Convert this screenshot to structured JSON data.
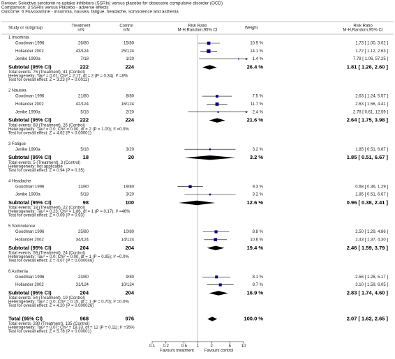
{
  "header": {
    "review": "Review:  Selective serotonin re-uptake inhibitors (SSRIs) versus placebo for obsessive compulsive disorder (OCD)",
    "comparison": "Comparison:  3 SSRIs versus Placebo - adverse effects",
    "outcome": "Outcome:  6 Fluvoxamine - insomnia, nausea, fatigue, headache, somnolence and asthenia"
  },
  "chart_data": {
    "type": "forest",
    "columns": {
      "study": "Study or subgroup",
      "treatment": [
        "Treatment",
        "n/N"
      ],
      "control": [
        "Control",
        "n/N"
      ],
      "plot": [
        "Risk Ratio",
        "M-H,Random,95% CI"
      ],
      "weight": "Weight",
      "ratio": [
        "Risk Ratio",
        "M-H,Random,95% CI"
      ]
    },
    "groups": [
      {
        "title": "1 Insomnia",
        "studies": [
          {
            "name": "Goodman 1996",
            "treatment": "26/80",
            "control": "15/80",
            "weight": 10.9,
            "weight_label": "10.9 %",
            "rr": 1.73,
            "ci": [
              1.0,
              3.02
            ],
            "rr_label": "1.73 [ 1.00, 3.02 ]"
          },
          {
            "name": "Hollander 2002",
            "treatment": "43/124",
            "control": "25/124",
            "weight": 14.1,
            "weight_label": "14.1 %",
            "rr": 1.72,
            "ci": [
              1.12,
              2.63
            ],
            "rr_label": "1.72 [ 1.12, 2.63 ]"
          },
          {
            "name": "Jenike 1990a",
            "treatment": "7/18",
            "control": "1/20",
            "weight": 1.4,
            "weight_label": "1.4 %",
            "rr": 7.78,
            "ci": [
              1.06,
              57.25
            ],
            "rr_label": "7.78 [ 1.06, 57.25 ]"
          }
        ],
        "subtotal": {
          "name": "Subtotal (95% CI)",
          "treatment": 222,
          "control": 224,
          "weight": 26.4,
          "weight_label": "26.4 %",
          "rr": 1.81,
          "ci": [
            1.26,
            2.6
          ],
          "rr_label": "1.81 [ 1.26, 2.60 ]"
        },
        "notes": [
          "Total events: 76 (Treatment), 41 (Control)",
          "Heterogeneity: Tau² = 0.01; Chi² = 2.17, df = 2 (P = 0.34); I² =8%",
          "Test for overall effect: Z = 3.23 (P = 0.0012)"
        ]
      },
      {
        "title": "2 Nausea",
        "studies": [
          {
            "name": "Goodman 1996",
            "treatment": "21/80",
            "control": "8/80",
            "weight": 7.5,
            "weight_label": "7.5 %",
            "rr": 2.63,
            "ci": [
              1.24,
              5.57
            ],
            "rr_label": "2.63 [ 1.24, 5.57 ]"
          },
          {
            "name": "Hollander 2002",
            "treatment": "42/124",
            "control": "16/124",
            "weight": 11.7,
            "weight_label": "11.7 %",
            "rr": 2.63,
            "ci": [
              1.56,
              4.41
            ],
            "rr_label": "2.63 [ 1.56, 4.41 ]"
          },
          {
            "name": "Jenike 1990a",
            "treatment": "5/18",
            "control": "2/20",
            "weight": 2.4,
            "weight_label": "2.4 %",
            "rr": 2.78,
            "ci": [
              0.61,
              12.59
            ],
            "rr_label": "2.78 [ 0.61, 12.59 ]"
          }
        ],
        "subtotal": {
          "name": "Subtotal (95% CI)",
          "treatment": 222,
          "control": 224,
          "weight": 21.6,
          "weight_label": "21.6 %",
          "rr": 2.64,
          "ci": [
            1.75,
            3.98
          ],
          "rr_label": "2.64 [ 1.75, 3.98 ]"
        },
        "notes": [
          "Total events: 68 (Treatment), 26 (Control)",
          "Heterogeneity: Tau² = 0.0; Chi² = 0.00, df = 2 (P = 1.00); I² =0.0%",
          "Test for overall effect: Z = 4.62 (P < 0.00001)"
        ]
      },
      {
        "title": "3 Fatigue",
        "studies": [
          {
            "name": "Jenike 1990a",
            "treatment": "5/18",
            "control": "3/20",
            "weight": 3.2,
            "weight_label": "3.2 %",
            "rr": 1.85,
            "ci": [
              0.51,
              6.67
            ],
            "rr_label": "1.85 [ 0.51, 6.67 ]"
          }
        ],
        "subtotal": {
          "name": "Subtotal (95% CI)",
          "treatment": 18,
          "control": 20,
          "weight": 3.2,
          "weight_label": "3.2 %",
          "rr": 1.85,
          "ci": [
            0.51,
            6.67
          ],
          "rr_label": "1.85 [ 0.51, 6.67 ]"
        },
        "notes": [
          "Total events: 5 (Treatment), 3 (Control)",
          "Heterogeneity: not applicable",
          "Test for overall effect: Z = 0.94 (P = 0.35)"
        ]
      },
      {
        "title": "4 Headache",
        "studies": [
          {
            "name": "Goodman 1996",
            "treatment": "13/80",
            "control": "19/80",
            "weight": 9.3,
            "weight_label": "9.3 %",
            "rr": 0.68,
            "ci": [
              0.36,
              1.29
            ],
            "rr_label": "0.68 [ 0.36, 1.29 ]"
          },
          {
            "name": "Jenike 1990a",
            "treatment": "5/18",
            "control": "3/20",
            "weight": 3.2,
            "weight_label": "3.2 %",
            "rr": 1.85,
            "ci": [
              0.51,
              6.67
            ],
            "rr_label": "1.85 [ 0.51, 6.67 ]"
          }
        ],
        "subtotal": {
          "name": "Subtotal (95% CI)",
          "treatment": 98,
          "control": 100,
          "weight": 12.6,
          "weight_label": "12.6 %",
          "rr": 0.96,
          "ci": [
            0.38,
            2.41
          ],
          "rr_label": "0.96 [ 0.38, 2.41 ]"
        },
        "notes": [
          "Total events: 18 (Treatment), 22 (Control)",
          "Heterogeneity: Tau² = 0.23; Chi² = 1.86, df = 1 (P = 0.17); I² =46%",
          "Test for overall effect: Z = 0.09 (P = 0.93)"
        ]
      },
      {
        "title": "5 Somnolence",
        "studies": [
          {
            "name": "Goodman 1996",
            "treatment": "25/80",
            "control": "10/80",
            "weight": 8.8,
            "weight_label": "8.8 %",
            "rr": 2.5,
            "ci": [
              1.29,
              4.86
            ],
            "rr_label": "2.50 [ 1.29, 4.86 ]"
          },
          {
            "name": "Hollander 2002",
            "treatment": "34/124",
            "control": "14/124",
            "weight": 10.6,
            "weight_label": "10.6 %",
            "rr": 2.43,
            "ci": [
              1.37,
              4.3
            ],
            "rr_label": "2.43 [ 1.37, 4.30 ]"
          }
        ],
        "subtotal": {
          "name": "Subtotal (95% CI)",
          "treatment": 204,
          "control": 204,
          "weight": 19.4,
          "weight_label": "19.4 %",
          "rr": 2.46,
          "ci": [
            1.59,
            3.79
          ],
          "rr_label": "2.46 [ 1.59, 3.79 ]"
        },
        "notes": [
          "Total events: 59 (Treatment), 24 (Control)",
          "Heterogeneity: Tau² = 0.0; Chi² = 0.00, df = 1 (P = 0.95); I² =0.0%",
          "Test for overall effect: Z = 4.07 (P = 0.000046)"
        ]
      },
      {
        "title": "6 Asthenia",
        "studies": [
          {
            "name": "Goodman 1996",
            "treatment": "23/80",
            "control": "9/80",
            "weight": 8.1,
            "weight_label": "8.1 %",
            "rr": 2.56,
            "ci": [
              1.26,
              5.17
            ],
            "rr_label": "2.56 [ 1.26, 5.17 ]"
          },
          {
            "name": "Hollander 2002",
            "treatment": "31/124",
            "control": "10/124",
            "weight": 8.7,
            "weight_label": "8.7 %",
            "rr": 3.1,
            "ci": [
              1.59,
              6.05
            ],
            "rr_label": "3.10 [ 1.59, 6.05 ]"
          }
        ],
        "subtotal": {
          "name": "Subtotal (95% CI)",
          "treatment": 204,
          "control": 204,
          "weight": 16.9,
          "weight_label": "16.9 %",
          "rr": 2.83,
          "ci": [
            1.74,
            4.6
          ],
          "rr_label": "2.83 [ 1.74, 4.60 ]"
        },
        "notes": [
          "Total events: 54 (Treatment), 19 (Control)",
          "Heterogeneity: Tau² = 0.0; Chi² = 0.15, df = 1 (P = 0.70); I² =0.0%",
          "Test for overall effect: Z = 4.20 (P = 0.000026)"
        ]
      }
    ],
    "total": {
      "name": "Total (95% CI)",
      "treatment": 968,
      "control": 976,
      "weight": 100.0,
      "weight_label": "100.0 %",
      "rr": 2.07,
      "ci": [
        1.62,
        2.65
      ],
      "rr_label": "2.07 [ 1.62, 2.65 ]",
      "notes": [
        "Total events: 280 (Treatment), 135 (Control)",
        "Heterogeneity: Tau² = 0.07; Chi² = 18.33, df = 12 (P = 0.11); I² =35%",
        "Test for overall effect: Z = 5.78 (P < 0.00001)"
      ]
    },
    "xlim": [
      0.1,
      10
    ],
    "xticks": [
      0.1,
      0.2,
      0.5,
      1,
      2,
      5,
      10
    ],
    "log_scale": true,
    "reference": 1,
    "xlabel_left": "Favours treatment",
    "xlabel_right": "Favours control",
    "square_color": "#00008b",
    "diamond_color": "#000000"
  }
}
